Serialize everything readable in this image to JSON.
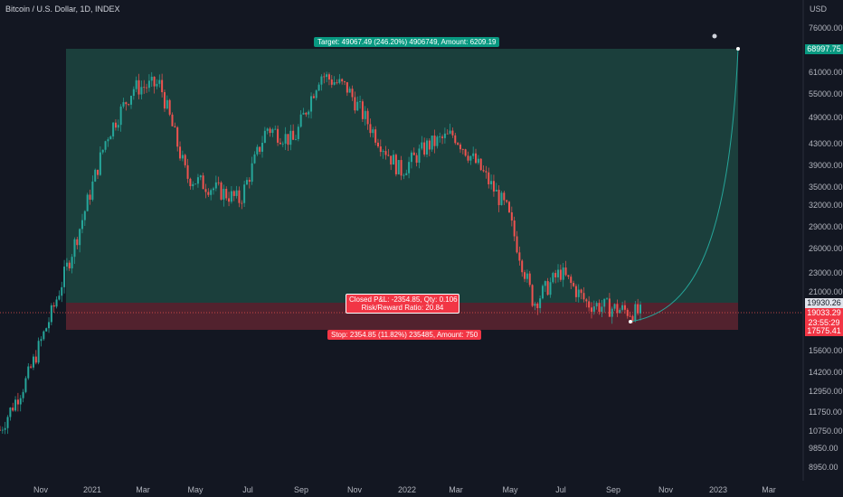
{
  "header": {
    "title": "Bitcoin / U.S. Dollar, 1D, INDEX",
    "currency": "USD"
  },
  "price_labels": [
    "76000.00",
    "68997.75",
    "61000.00",
    "55000.00",
    "49000.00",
    "43000.00",
    "39000.00",
    "35000.00",
    "32000.00",
    "29000.00",
    "26000.00",
    "23000.00",
    "21000.00",
    "19930.26",
    "19033.29",
    "23:55:29",
    "17575.41",
    "15600.00",
    "14200.00",
    "12950.00",
    "11750.00",
    "10750.00",
    "9850.00",
    "8950.00"
  ],
  "time_labels": [
    "Nov",
    "2021",
    "Mar",
    "May",
    "Jul",
    "Sep",
    "Nov",
    "2022",
    "Mar",
    "May",
    "Jul",
    "Sep",
    "Nov",
    "2023",
    "Mar"
  ],
  "position": {
    "target_label": "Target: 49067.49 (246.20%) 4906749, Amount: 6209.19",
    "closed_label": "Closed P&L: -2354.85, Qty: 0.106",
    "rr_label": "Risk/Reward Ratio: 20.84",
    "stop_label": "Stop: 2354.85 (11.82%) 235485, Amount: 750"
  },
  "colors": {
    "background": "#131722",
    "profit_zone": "#1f4e45",
    "loss_zone": "#5e2430",
    "target_badge": "#089981",
    "stop_badge": "#f23645",
    "up_candle": "#26a69a",
    "down_candle": "#ef5350",
    "projection_line": "#26a69a"
  },
  "chart_data": {
    "type": "candlestick",
    "title": "Bitcoin / U.S. Dollar, 1D, INDEX",
    "ylabel": "USD",
    "ylim": [
      8500,
      82000
    ],
    "y_scale": "log",
    "entry": 19930.26,
    "target": 68997.75,
    "stop": 17575.41,
    "last_price": 19033.29,
    "countdown": "23:55:29",
    "series": [
      {
        "name": "BTCUSD",
        "x": [
          "2020-10-01",
          "2020-11-01",
          "2020-12-01",
          "2021-01-01",
          "2021-02-01",
          "2021-03-01",
          "2021-04-01",
          "2021-05-01",
          "2021-06-01",
          "2021-07-01",
          "2021-08-01",
          "2021-09-01",
          "2021-10-01",
          "2021-11-01",
          "2021-12-01",
          "2022-01-01",
          "2022-02-01",
          "2022-03-01",
          "2022-04-01",
          "2022-05-01",
          "2022-06-01",
          "2022-07-01",
          "2022-08-01",
          "2022-09-01",
          "2022-10-01"
        ],
        "close": [
          10800,
          13800,
          19500,
          29000,
          45000,
          57000,
          58000,
          37000,
          35000,
          33000,
          47000,
          44000,
          61000,
          57000,
          46000,
          38000,
          43000,
          45500,
          38500,
          31500,
          20000,
          23300,
          20000,
          19500,
          19033
        ]
      }
    ]
  }
}
